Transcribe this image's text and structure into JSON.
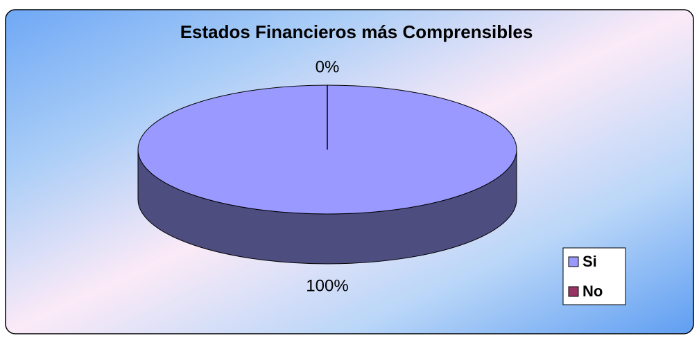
{
  "chart_data": {
    "type": "pie3d",
    "title": "Estados Financieros más Comprensibles",
    "categories": [
      "Si",
      "No"
    ],
    "values": [
      100,
      0
    ],
    "value_labels": [
      "100%",
      "0%"
    ],
    "colors": [
      "#9999ff",
      "#993366"
    ],
    "side_colors": [
      "#4d4d80",
      "#4d1a33"
    ],
    "legend": "right"
  }
}
